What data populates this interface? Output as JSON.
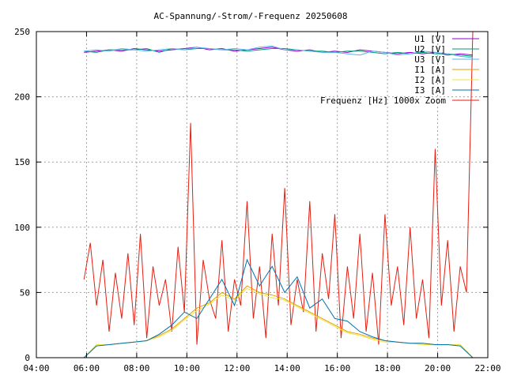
{
  "chart_data": {
    "type": "line",
    "title": "AC-Spannung/-Strom/-Frequenz 20250608",
    "xlabel": "",
    "ylabel": "",
    "xlim": [
      4,
      22
    ],
    "ylim": [
      0,
      250
    ],
    "x_ticks": [
      "04:00",
      "06:00",
      "08:00",
      "10:00",
      "12:00",
      "14:00",
      "16:00",
      "18:00",
      "20:00",
      "22:00"
    ],
    "y_ticks": [
      "0",
      "50",
      "100",
      "150",
      "200",
      "250"
    ],
    "grid": true,
    "legend_position": "top-right",
    "series": [
      {
        "name": "U1 [V]",
        "color": "#9400d3",
        "x_start": 5.9,
        "x_step": 0.5,
        "values": [
          234,
          235,
          236,
          235,
          237,
          236,
          235,
          236,
          237,
          238,
          236,
          237,
          235,
          236,
          237,
          238,
          236,
          235,
          236,
          234,
          235,
          234,
          236,
          235,
          234,
          233,
          234,
          233,
          234,
          232,
          233,
          232
        ]
      },
      {
        "name": "U2 [V]",
        "color": "#009e73",
        "x_start": 5.9,
        "x_step": 0.5,
        "values": [
          235,
          234,
          236,
          236,
          236,
          237,
          234,
          237,
          236,
          237,
          237,
          236,
          236,
          235,
          236,
          237,
          237,
          236,
          235,
          235,
          234,
          235,
          235,
          234,
          233,
          234,
          233,
          234,
          233,
          233,
          232,
          231
        ]
      },
      {
        "name": "U3 [V]",
        "color": "#56b4e9",
        "x_start": 5.9,
        "x_step": 0.5,
        "values": [
          235,
          236,
          235,
          237,
          236,
          235,
          236,
          237,
          236,
          238,
          237,
          236,
          237,
          236,
          238,
          239,
          236,
          236,
          235,
          234,
          234,
          233,
          232,
          235,
          234,
          232,
          233,
          235,
          234,
          233,
          231,
          230
        ]
      },
      {
        "name": "I1 [A]",
        "color": "#e69f00",
        "x_start": 5.9,
        "x_step": 0.5,
        "values": [
          0,
          10,
          10,
          11,
          12,
          13,
          17,
          22,
          30,
          38,
          42,
          50,
          45,
          55,
          50,
          48,
          45,
          40,
          35,
          30,
          25,
          20,
          18,
          15,
          13,
          12,
          11,
          11,
          10,
          10,
          10,
          0
        ]
      },
      {
        "name": "I2 [A]",
        "color": "#f0e442",
        "x_start": 5.9,
        "x_step": 0.5,
        "values": [
          0,
          10,
          10,
          11,
          12,
          13,
          16,
          21,
          29,
          36,
          41,
          48,
          44,
          53,
          49,
          46,
          44,
          39,
          34,
          29,
          24,
          19,
          17,
          14,
          12,
          12,
          11,
          10,
          10,
          10,
          10,
          0
        ]
      },
      {
        "name": "I3 [A]",
        "color": "#0072b2",
        "x_start": 5.9,
        "x_step": 0.5,
        "values": [
          0,
          9,
          10,
          11,
          12,
          13,
          18,
          25,
          35,
          30,
          45,
          60,
          40,
          75,
          55,
          70,
          50,
          62,
          38,
          45,
          30,
          28,
          20,
          16,
          13,
          12,
          11,
          11,
          10,
          10,
          9,
          0
        ]
      },
      {
        "name": "Frequenz [Hz] 1000x Zoom",
        "color": "#e51e10",
        "x_start": 5.9,
        "x_step": 0.25,
        "values": [
          60,
          88,
          40,
          75,
          20,
          65,
          30,
          80,
          25,
          95,
          15,
          70,
          40,
          60,
          20,
          85,
          35,
          180,
          10,
          75,
          45,
          30,
          90,
          20,
          60,
          40,
          120,
          30,
          70,
          15,
          95,
          40,
          130,
          25,
          60,
          35,
          120,
          20,
          80,
          45,
          110,
          15,
          70,
          30,
          95,
          20,
          65,
          10,
          110,
          40,
          70,
          25,
          100,
          30,
          60,
          15,
          160,
          40,
          90,
          20,
          70,
          50,
          250
        ]
      }
    ]
  }
}
